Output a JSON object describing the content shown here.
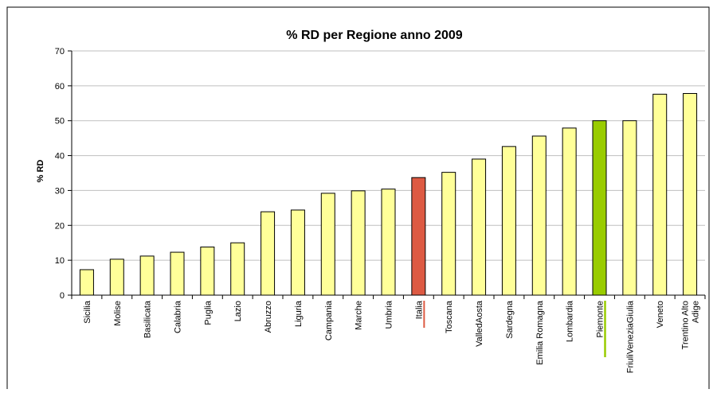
{
  "chart_data": {
    "type": "bar",
    "title": "% RD per Regione anno 2009",
    "xlabel": "",
    "ylabel": "% RD",
    "ylim": [
      0,
      70
    ],
    "yticks": [
      0,
      10,
      20,
      30,
      40,
      50,
      60,
      70
    ],
    "grid": true,
    "legend": "none",
    "categories": [
      "Sicilia",
      "Molise",
      "Basilicata",
      "Calabria",
      "Puglia",
      "Lazio",
      "Abruzzo",
      "Liguria",
      "Campania",
      "Marche",
      "Umbria",
      "Italia",
      "Toscana",
      "ValledAosta",
      "Sardegna",
      "Emilia Romagna",
      "Lombardia",
      "Piemonte",
      "FriuliVeneziaGiulia",
      "Veneto",
      "Trentino Alto Adige"
    ],
    "values": [
      7.3,
      10.3,
      11.2,
      12.3,
      13.8,
      15.0,
      23.9,
      24.4,
      29.2,
      29.9,
      30.4,
      33.7,
      35.2,
      39.0,
      42.6,
      45.6,
      47.9,
      50.0,
      50.0,
      57.6,
      57.8
    ],
    "highlights": {
      "Italia": "red",
      "Piemonte": "green"
    },
    "colors": {
      "default": "#FFFF99",
      "red": "#DD5A43",
      "green": "#99CC00",
      "stroke": "#000000",
      "grid": "#BFBFBF"
    }
  }
}
